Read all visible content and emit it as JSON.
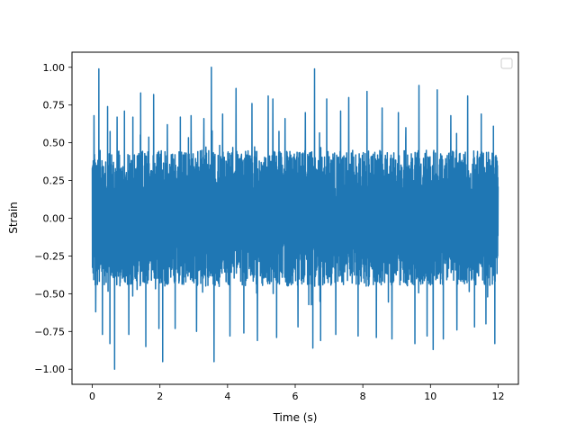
{
  "chart_data": {
    "type": "line",
    "title": "",
    "xlabel": "Time (s)",
    "ylabel": "Strain",
    "xlim": [
      -0.6,
      12.6
    ],
    "ylim": [
      -1.1,
      1.1
    ],
    "x_ticks": [
      0,
      2,
      4,
      6,
      8,
      10,
      12
    ],
    "y_ticks": [
      -1.0,
      -0.75,
      -0.5,
      -0.25,
      0.0,
      0.25,
      0.5,
      0.75,
      1.0
    ],
    "x_tick_labels": [
      "0",
      "2",
      "4",
      "6",
      "8",
      "10",
      "12"
    ],
    "y_tick_labels": [
      "−1.00",
      "−0.75",
      "−0.50",
      "−0.25",
      "0.00",
      "0.25",
      "0.50",
      "0.75",
      "1.00"
    ],
    "grid": false,
    "legend": {
      "placement": "top-right",
      "entries": []
    },
    "series": [
      {
        "color": "#1f77b4",
        "x_range": [
          0,
          12
        ],
        "band": {
          "typical_abs": 0.45,
          "min": -1.0,
          "max": 1.0
        },
        "peaks": [
          [
            0.05,
            0.68
          ],
          [
            0.1,
            -0.62
          ],
          [
            0.19,
            0.99
          ],
          [
            0.3,
            -0.77
          ],
          [
            0.45,
            0.74
          ],
          [
            0.52,
            -0.83
          ],
          [
            0.66,
            -1.0
          ],
          [
            0.73,
            0.67
          ],
          [
            0.95,
            0.71
          ],
          [
            1.08,
            -0.77
          ],
          [
            1.2,
            0.67
          ],
          [
            1.43,
            0.83
          ],
          [
            1.58,
            -0.85
          ],
          [
            1.81,
            0.82
          ],
          [
            1.97,
            -0.73
          ],
          [
            2.08,
            -0.95
          ],
          [
            2.22,
            0.62
          ],
          [
            2.45,
            -0.73
          ],
          [
            2.6,
            0.67
          ],
          [
            2.92,
            0.68
          ],
          [
            3.08,
            -0.75
          ],
          [
            3.3,
            0.66
          ],
          [
            3.52,
            1.0
          ],
          [
            3.6,
            -0.95
          ],
          [
            3.85,
            0.69
          ],
          [
            4.07,
            -0.78
          ],
          [
            4.25,
            0.86
          ],
          [
            4.48,
            -0.76
          ],
          [
            4.72,
            0.76
          ],
          [
            4.88,
            -0.81
          ],
          [
            5.2,
            0.81
          ],
          [
            5.34,
            0.79
          ],
          [
            5.45,
            -0.79
          ],
          [
            5.7,
            0.66
          ],
          [
            6.08,
            -0.72
          ],
          [
            6.3,
            0.7
          ],
          [
            6.52,
            -0.86
          ],
          [
            6.57,
            0.99
          ],
          [
            6.75,
            -0.81
          ],
          [
            6.93,
            0.79
          ],
          [
            7.2,
            -0.77
          ],
          [
            7.34,
            0.71
          ],
          [
            7.58,
            0.8
          ],
          [
            7.86,
            -0.78
          ],
          [
            8.12,
            0.84
          ],
          [
            8.4,
            -0.79
          ],
          [
            8.57,
            0.73
          ],
          [
            8.86,
            -0.8
          ],
          [
            9.05,
            0.7
          ],
          [
            9.27,
            0.6
          ],
          [
            9.54,
            -0.83
          ],
          [
            9.66,
            0.88
          ],
          [
            9.9,
            -0.78
          ],
          [
            10.08,
            -0.87
          ],
          [
            10.2,
            0.85
          ],
          [
            10.38,
            -0.8
          ],
          [
            10.6,
            0.68
          ],
          [
            10.78,
            -0.74
          ],
          [
            11.1,
            0.81
          ],
          [
            11.3,
            -0.72
          ],
          [
            11.5,
            0.69
          ],
          [
            11.64,
            -0.7
          ],
          [
            11.86,
            0.61
          ],
          [
            11.9,
            -0.83
          ]
        ]
      }
    ]
  }
}
